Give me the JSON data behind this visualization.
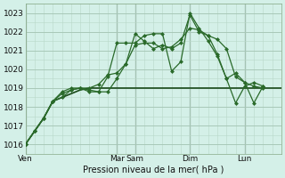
{
  "bg_color": "#d4f0e8",
  "plot_bg_color": "#d4f0e8",
  "grid_color_major": "#a8c8b8",
  "grid_color_minor": "#b8d8c8",
  "line_color_dark": "#1a4a1a",
  "line_color_med": "#2a6a2a",
  "ylim": [
    1015.5,
    1023.5
  ],
  "yticks": [
    1016,
    1017,
    1018,
    1019,
    1020,
    1021,
    1022,
    1023
  ],
  "xlabel": "Pression niveau de la mer( hPa )",
  "day_labels": [
    "Ven",
    "Mar",
    "Sam",
    "Dim",
    "Lun"
  ],
  "day_positions": [
    0,
    60,
    72,
    108,
    144
  ],
  "total_hours": 168,
  "series1_x": [
    0,
    6,
    12,
    18,
    24,
    30,
    36,
    42,
    48,
    54,
    60,
    66,
    72,
    78,
    84,
    90,
    96,
    102,
    108,
    114,
    120,
    126,
    132,
    138,
    144,
    150,
    156,
    162,
    168
  ],
  "series1_y": [
    1016.0,
    1016.7,
    1017.4,
    1018.3,
    1018.5,
    1018.7,
    1018.9,
    1019.0,
    1019.0,
    1019.0,
    1019.0,
    1019.0,
    1019.0,
    1019.0,
    1019.0,
    1019.0,
    1019.0,
    1019.0,
    1019.0,
    1019.0,
    1019.0,
    1019.0,
    1019.0,
    1019.0,
    1019.0,
    1019.0,
    1019.0,
    1019.0,
    1019.0
  ],
  "series2_x": [
    0,
    6,
    12,
    18,
    24,
    30,
    36,
    42,
    48,
    54,
    60,
    66,
    72,
    78,
    84,
    90,
    96,
    102,
    108,
    114,
    120,
    126,
    132,
    138,
    144,
    150,
    156
  ],
  "series2_y": [
    1016.0,
    1016.7,
    1017.4,
    1018.3,
    1018.5,
    1018.9,
    1019.0,
    1019.0,
    1019.2,
    1019.7,
    1019.8,
    1020.3,
    1021.3,
    1021.4,
    1021.4,
    1021.1,
    1021.2,
    1021.6,
    1022.2,
    1022.1,
    1021.8,
    1021.6,
    1021.1,
    1019.6,
    1019.3,
    1019.1,
    1019.0
  ],
  "series3_x": [
    0,
    6,
    12,
    18,
    24,
    30,
    36,
    42,
    48,
    54,
    60,
    66,
    72,
    78,
    84,
    90,
    96,
    102,
    108,
    114,
    120,
    126,
    132,
    138,
    144,
    150,
    156
  ],
  "series3_y": [
    1016.0,
    1016.7,
    1017.4,
    1018.3,
    1018.8,
    1019.0,
    1019.0,
    1018.9,
    1018.8,
    1019.6,
    1021.4,
    1021.4,
    1021.4,
    1021.8,
    1021.9,
    1021.9,
    1019.9,
    1020.4,
    1023.0,
    1022.2,
    1021.5,
    1020.7,
    1019.5,
    1019.8,
    1019.3,
    1018.2,
    1019.1
  ],
  "series4_x": [
    0,
    6,
    12,
    18,
    24,
    30,
    36,
    42,
    48,
    54,
    60,
    66,
    72,
    78,
    84,
    90,
    96,
    102,
    108,
    114,
    120,
    126,
    132,
    138,
    144,
    150,
    156
  ],
  "series4_y": [
    1016.0,
    1016.7,
    1017.4,
    1018.3,
    1018.7,
    1018.9,
    1019.0,
    1018.8,
    1018.8,
    1018.8,
    1019.5,
    1020.3,
    1021.9,
    1021.5,
    1021.1,
    1021.3,
    1021.1,
    1021.4,
    1022.9,
    1022.0,
    1021.8,
    1020.8,
    1019.5,
    1018.2,
    1019.1,
    1019.3,
    1019.1
  ]
}
